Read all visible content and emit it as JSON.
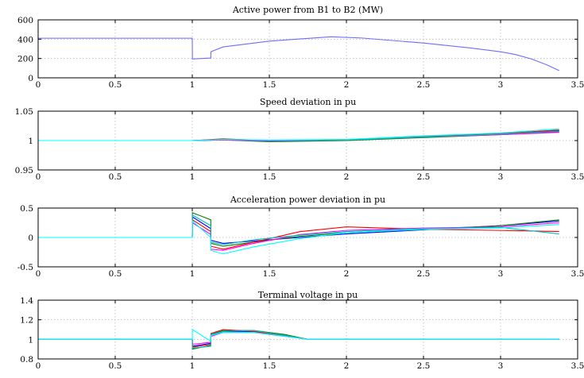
{
  "chart_data": [
    {
      "type": "line",
      "title": "Active power from B1 to B2 (MW)",
      "xlabel": "",
      "ylabel": "",
      "xlim": [
        0,
        3.5
      ],
      "ylim": [
        0,
        600
      ],
      "xticks": [
        "0",
        "0.5",
        "1",
        "1.5",
        "2",
        "2.5",
        "3",
        "3.5"
      ],
      "yticks": [
        "0",
        "200",
        "400",
        "600"
      ],
      "grid": true,
      "series": [
        {
          "color": "#6d6dff",
          "x": [
            0,
            1.0,
            1.001,
            1.12,
            1.121,
            1.2,
            1.5,
            1.9,
            2.1,
            2.5,
            2.8,
            3.0,
            3.1,
            3.2,
            3.3,
            3.38
          ],
          "y": [
            410,
            410,
            195,
            205,
            270,
            320,
            380,
            425,
            412,
            360,
            310,
            270,
            240,
            195,
            135,
            75
          ]
        }
      ]
    },
    {
      "type": "line",
      "title": "Speed deviation in pu",
      "xlabel": "",
      "ylabel": "",
      "xlim": [
        0,
        3.5
      ],
      "ylim": [
        0.95,
        1.05
      ],
      "xticks": [
        "0",
        "0.5",
        "1",
        "1.5",
        "2",
        "2.5",
        "3",
        "3.5"
      ],
      "yticks": [
        "0.95",
        "1",
        "1.05"
      ],
      "grid": true,
      "series": [
        {
          "color": "#0000ff",
          "x": [
            0,
            1.0,
            1.2,
            1.5,
            2.0,
            2.5,
            3.0,
            3.38
          ],
          "y": [
            1.0,
            1.0,
            1.002,
            0.999,
            1.001,
            1.006,
            1.011,
            1.017
          ]
        },
        {
          "color": "#008000",
          "x": [
            0,
            1.0,
            1.2,
            1.5,
            2.0,
            2.5,
            3.0,
            3.38
          ],
          "y": [
            1.0,
            1.0,
            1.001,
            0.998,
            1.0,
            1.005,
            1.01,
            1.015
          ]
        },
        {
          "color": "#ff0000",
          "x": [
            0,
            1.0,
            1.2,
            1.5,
            2.0,
            2.5,
            3.0,
            3.38
          ],
          "y": [
            1.0,
            1.0,
            1.003,
            1.0,
            1.002,
            1.007,
            1.012,
            1.018
          ]
        },
        {
          "color": "#ff00ff",
          "x": [
            0,
            1.0,
            1.2,
            1.5,
            2.0,
            2.5,
            3.0,
            3.38
          ],
          "y": [
            1.0,
            1.0,
            1.001,
            0.999,
            1.001,
            1.006,
            1.01,
            1.014
          ]
        },
        {
          "color": "#00bfbf",
          "x": [
            0,
            1.0,
            1.2,
            1.5,
            2.0,
            2.5,
            3.0,
            3.38
          ],
          "y": [
            1.0,
            1.0,
            1.002,
            1.0,
            1.001,
            1.006,
            1.011,
            1.016
          ]
        },
        {
          "color": "#00ffff",
          "x": [
            0,
            1.0,
            1.2,
            1.5,
            2.0,
            2.5,
            3.0,
            3.38
          ],
          "y": [
            1.0,
            1.0,
            1.002,
            1.001,
            1.002,
            1.008,
            1.013,
            1.02
          ]
        }
      ]
    },
    {
      "type": "line",
      "title": "Acceleration power deviation in pu",
      "xlabel": "",
      "ylabel": "",
      "xlim": [
        0,
        3.5
      ],
      "ylim": [
        -0.5,
        0.5
      ],
      "xticks": [
        "0",
        "0.5",
        "1",
        "1.5",
        "2",
        "2.5",
        "3",
        "3.5"
      ],
      "yticks": [
        "-0.5",
        "0",
        "0.5"
      ],
      "grid": true,
      "series": [
        {
          "color": "#0000ff",
          "x": [
            0,
            1.0,
            1.001,
            1.12,
            1.121,
            1.2,
            1.4,
            1.7,
            2.0,
            2.5,
            3.0,
            3.38
          ],
          "y": [
            0,
            0,
            0.35,
            0.15,
            -0.05,
            -0.1,
            -0.06,
            0.0,
            0.06,
            0.13,
            0.2,
            0.28
          ]
        },
        {
          "color": "#008000",
          "x": [
            0,
            1.0,
            1.001,
            1.12,
            1.121,
            1.2,
            1.4,
            1.7,
            2.0,
            2.5,
            3.0,
            3.38
          ],
          "y": [
            0,
            0,
            0.42,
            0.3,
            -0.1,
            -0.15,
            -0.08,
            0.02,
            0.08,
            0.14,
            0.2,
            0.3
          ]
        },
        {
          "color": "#ff0000",
          "x": [
            0,
            1.0,
            1.001,
            1.12,
            1.121,
            1.2,
            1.4,
            1.7,
            2.0,
            2.5,
            3.0,
            3.38
          ],
          "y": [
            0,
            0,
            0.3,
            0.1,
            -0.15,
            -0.2,
            -0.08,
            0.1,
            0.18,
            0.14,
            0.12,
            0.1
          ]
        },
        {
          "color": "#ff00ff",
          "x": [
            0,
            1.0,
            1.001,
            1.12,
            1.121,
            1.2,
            1.4,
            1.7,
            2.0,
            2.5,
            3.0,
            3.38
          ],
          "y": [
            0,
            0,
            0.25,
            0.05,
            -0.2,
            -0.22,
            -0.1,
            0.05,
            0.12,
            0.16,
            0.18,
            0.25
          ]
        },
        {
          "color": "#00bfbf",
          "x": [
            0,
            1.0,
            1.001,
            1.12,
            1.121,
            1.2,
            1.4,
            1.7,
            2.0,
            2.5,
            3.0,
            3.38
          ],
          "y": [
            0,
            0,
            0.38,
            0.2,
            -0.08,
            -0.12,
            -0.04,
            0.04,
            0.1,
            0.15,
            0.17,
            0.06
          ]
        },
        {
          "color": "#00ffff",
          "x": [
            0,
            1.0,
            1.001,
            1.12,
            1.121,
            1.2,
            1.4,
            1.7,
            2.0,
            2.5,
            3.0,
            3.38
          ],
          "y": [
            0,
            0,
            0.28,
            0.0,
            -0.22,
            -0.28,
            -0.16,
            -0.02,
            0.08,
            0.14,
            0.16,
            0.22
          ]
        }
      ]
    },
    {
      "type": "line",
      "title": "Terminal voltage in pu",
      "xlabel": "",
      "ylabel": "",
      "xlim": [
        0,
        3.5
      ],
      "ylim": [
        0.8,
        1.4
      ],
      "xticks": [
        "0",
        "0.5",
        "1",
        "1.5",
        "2",
        "2.5",
        "3",
        "3.5"
      ],
      "yticks": [
        "0.8",
        "1",
        "1.2",
        "1.4"
      ],
      "grid": true,
      "series": [
        {
          "color": "#0000ff",
          "x": [
            0,
            1.0,
            1.001,
            1.12,
            1.121,
            1.2,
            1.4,
            1.6,
            1.75,
            2.0,
            3.38
          ],
          "y": [
            1.0,
            1.0,
            0.93,
            0.96,
            1.04,
            1.08,
            1.08,
            1.04,
            1.0,
            1.0,
            1.0
          ]
        },
        {
          "color": "#008000",
          "x": [
            0,
            1.0,
            1.001,
            1.12,
            1.121,
            1.2,
            1.4,
            1.6,
            1.75,
            2.0,
            3.38
          ],
          "y": [
            1.0,
            1.0,
            0.9,
            0.94,
            1.05,
            1.09,
            1.09,
            1.05,
            1.0,
            1.0,
            1.0
          ]
        },
        {
          "color": "#ff0000",
          "x": [
            0,
            1.0,
            1.001,
            1.12,
            1.121,
            1.2,
            1.4,
            1.6,
            1.75,
            2.0,
            3.38
          ],
          "y": [
            1.0,
            1.0,
            0.92,
            0.95,
            1.06,
            1.1,
            1.08,
            1.04,
            1.0,
            1.0,
            1.0
          ]
        },
        {
          "color": "#ff00ff",
          "x": [
            0,
            1.0,
            1.001,
            1.12,
            1.121,
            1.2,
            1.4,
            1.6,
            1.75,
            2.0,
            3.38
          ],
          "y": [
            1.0,
            1.0,
            0.95,
            0.97,
            1.03,
            1.07,
            1.07,
            1.03,
            1.0,
            1.0,
            1.0
          ]
        },
        {
          "color": "#00bfbf",
          "x": [
            0,
            1.0,
            1.001,
            1.12,
            1.121,
            1.2,
            1.4,
            1.6,
            1.75,
            2.0,
            3.38
          ],
          "y": [
            1.0,
            1.0,
            0.91,
            0.93,
            1.05,
            1.08,
            1.09,
            1.04,
            1.0,
            1.0,
            1.0
          ]
        },
        {
          "color": "#00ffff",
          "x": [
            0,
            1.0,
            1.001,
            1.12,
            1.121,
            1.2,
            1.4,
            1.6,
            1.75,
            2.0,
            3.38
          ],
          "y": [
            1.0,
            1.0,
            1.1,
            0.98,
            1.04,
            1.07,
            1.07,
            1.03,
            1.0,
            1.0,
            1.0
          ]
        }
      ]
    }
  ]
}
